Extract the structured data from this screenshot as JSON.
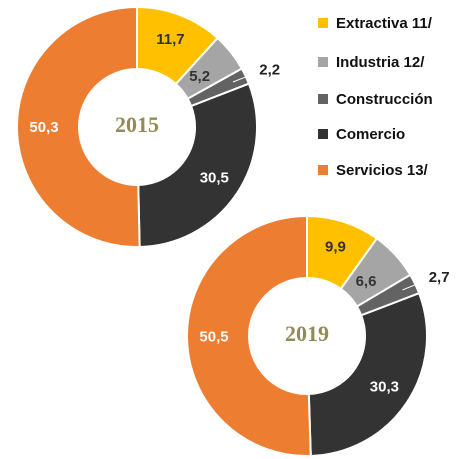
{
  "chart_data": [
    {
      "type": "pie",
      "title": "2015",
      "categories": [
        "Extractiva 11/",
        "Industria 12/",
        "Construcción",
        "Comercio",
        "Servicios 13/"
      ],
      "colors": [
        "#FFC000",
        "#A5A5A5",
        "#636363",
        "#333333",
        "#ED7D31"
      ],
      "values": [
        11.7,
        5.2,
        2.2,
        30.5,
        50.3
      ],
      "value_labels": [
        "11,7",
        "5,2",
        "2,2",
        "30,5",
        "50,3"
      ]
    },
    {
      "type": "pie",
      "title": "2019",
      "values": [
        9.9,
        6.6,
        2.7,
        30.3,
        50.5
      ],
      "value_labels": [
        "9,9",
        "6,6",
        "2,7",
        "30,3",
        "50,5"
      ]
    }
  ]
}
